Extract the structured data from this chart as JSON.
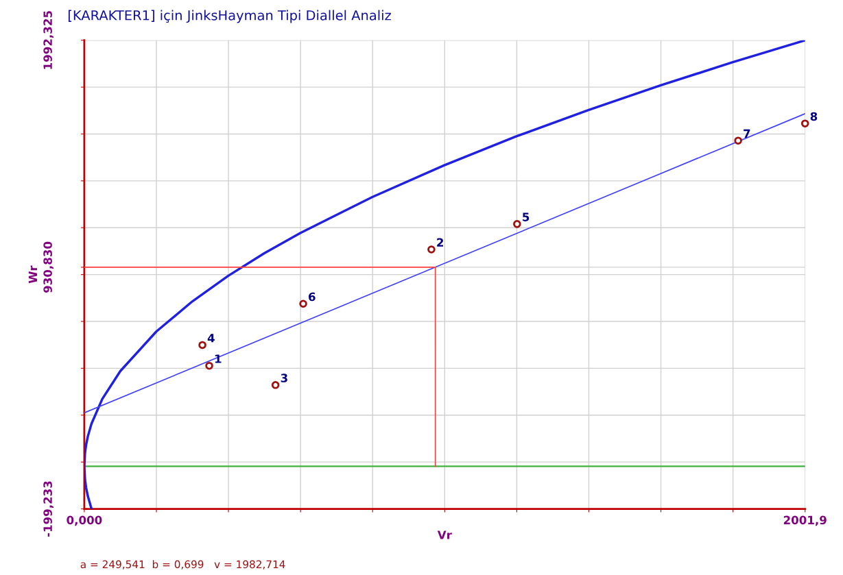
{
  "chart_data": {
    "type": "scatter",
    "title": "[KARAKTER1] için JinksHayman Tipi Diallel Analiz",
    "xlabel": "Vr",
    "ylabel": "Wr",
    "xlim": [
      0,
      2001.9
    ],
    "ylim": [
      -199.233,
      1992.325
    ],
    "xticks": [
      {
        "value": 0,
        "label": "0,000"
      },
      {
        "value": 200.19,
        "label": null
      },
      {
        "value": 400.38,
        "label": null
      },
      {
        "value": 600.57,
        "label": null
      },
      {
        "value": 800.76,
        "label": null
      },
      {
        "value": 1000.95,
        "label": null
      },
      {
        "value": 1201.14,
        "label": null
      },
      {
        "value": 1401.33,
        "label": null
      },
      {
        "value": 1601.52,
        "label": null
      },
      {
        "value": 1801.71,
        "label": null
      },
      {
        "value": 2001.9,
        "label": "2001,9"
      }
    ],
    "yticks": [
      {
        "value": -199.233,
        "label": "-199,233"
      },
      {
        "value": 19.923,
        "label": null
      },
      {
        "value": 239.079,
        "label": null
      },
      {
        "value": 458.234,
        "label": null
      },
      {
        "value": 677.39,
        "label": null
      },
      {
        "value": 896.546,
        "label": null
      },
      {
        "value": 930.83,
        "label": "930,830"
      },
      {
        "value": 1115.702,
        "label": null
      },
      {
        "value": 1334.858,
        "label": null
      },
      {
        "value": 1554.013,
        "label": null
      },
      {
        "value": 1773.169,
        "label": null
      },
      {
        "value": 1992.325,
        "label": "1992,325"
      }
    ],
    "grid": true,
    "series": [
      {
        "type": "line",
        "color": "#2020e0",
        "x": [
          20.02,
          10,
          5,
          2,
          0,
          2,
          5,
          10,
          20,
          50,
          100,
          200,
          300,
          400,
          500,
          600,
          800,
          1000,
          1200,
          1400,
          1600,
          1800,
          2001.9
        ],
        "values": [
          -199,
          -141,
          -100,
          -63,
          0,
          63,
          100,
          141,
          199,
          315,
          445,
          630,
          771,
          891,
          996,
          1091,
          1259,
          1408,
          1543,
          1666,
          1781,
          1889,
          1992
        ]
      },
      {
        "type": "line",
        "color": "#4040ff",
        "x": [
          0,
          2001.9
        ],
        "values": [
          250,
          1649
        ]
      },
      {
        "type": "line",
        "color": "#ff4040",
        "x": [
          0,
          975,
          975
        ],
        "values": [
          931,
          931,
          0
        ]
      },
      {
        "color": "#a01010",
        "marker": "circle",
        "x": [
          347,
          964,
          531,
          328,
          1202,
          608,
          1816,
          2001.9
        ],
        "values": [
          470,
          1014,
          380,
          567,
          1133,
          760,
          1523,
          1603
        ]
      }
    ],
    "ref_lines": [
      {
        "axis": "y",
        "value": 0,
        "color": "#40b040"
      }
    ],
    "annotations": [
      {
        "text": "1",
        "x": 347,
        "y": 470
      },
      {
        "text": "2",
        "x": 964,
        "y": 1014
      },
      {
        "text": "3",
        "x": 531,
        "y": 380
      },
      {
        "text": "4",
        "x": 328,
        "y": 567
      },
      {
        "text": "5",
        "x": 1202,
        "y": 1133
      },
      {
        "text": "6",
        "x": 608,
        "y": 760
      },
      {
        "text": "7",
        "x": 1816,
        "y": 1523
      },
      {
        "text": "8",
        "x": 2001.9,
        "y": 1603
      },
      "a = 249,541  b = 0,699   v = 1982,714"
    ]
  }
}
